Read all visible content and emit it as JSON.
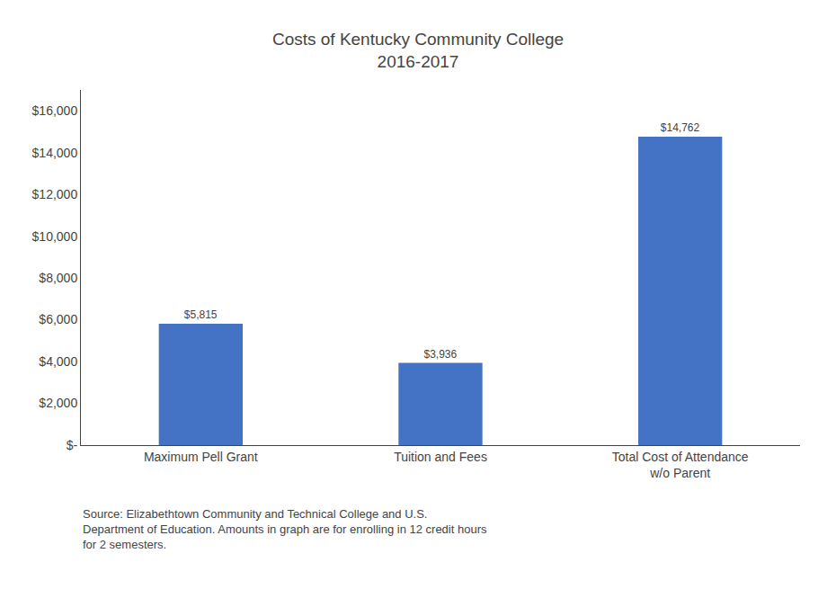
{
  "chart_data": {
    "type": "bar",
    "title": "Costs of Kentucky Community College\n2016-2017",
    "categories": [
      "Maximum Pell Grant",
      "Tuition and Fees",
      "Total Cost of Attendance\nw/o Parent"
    ],
    "values": [
      5815,
      3936,
      14762
    ],
    "value_labels": [
      "$5,815",
      "$3,936",
      "$14,762"
    ],
    "data_labels": true,
    "color": "#4472C4",
    "ylim": [
      0,
      17000
    ],
    "yticks": [
      {
        "value": 0,
        "label": "$-"
      },
      {
        "value": 2000,
        "label": "$2,000"
      },
      {
        "value": 4000,
        "label": "$4,000"
      },
      {
        "value": 6000,
        "label": "$6,000"
      },
      {
        "value": 8000,
        "label": "$8,000"
      },
      {
        "value": 10000,
        "label": "$10,000"
      },
      {
        "value": 12000,
        "label": "$12,000"
      },
      {
        "value": 14000,
        "label": "$14,000"
      },
      {
        "value": 16000,
        "label": "$16,000"
      }
    ],
    "grid": false,
    "annotations": [
      "Source: Elizabethtown Community and Technical College and U.S.\nDepartment of Education. Amounts in graph are for enrolling in 12 credit hours\nfor 2 semesters."
    ]
  }
}
